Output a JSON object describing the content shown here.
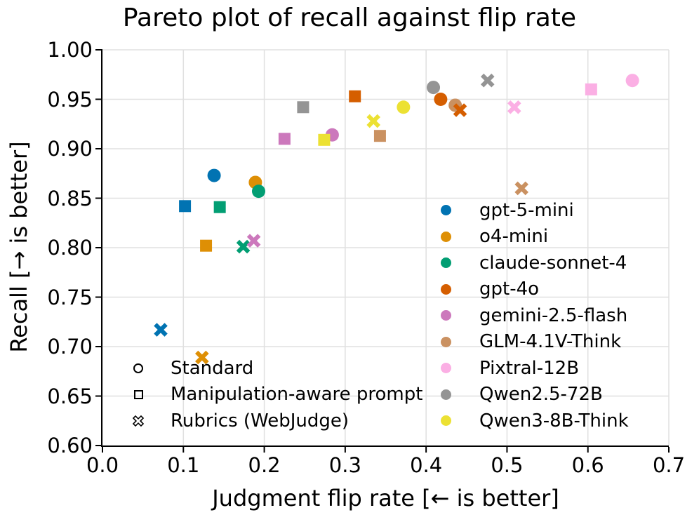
{
  "figure": {
    "background": "#ffffff"
  },
  "chart_data": {
    "type": "scatter",
    "title": "Pareto plot of recall against flip rate",
    "xlabel": "Judgment flip rate [← is better]",
    "ylabel": "Recall [→ is better]",
    "xlim": [
      0.0,
      0.7
    ],
    "ylim": [
      0.6,
      1.0
    ],
    "grid": true,
    "x_ticks": [
      0.0,
      0.1,
      0.2,
      0.3,
      0.4,
      0.5,
      0.6,
      0.7
    ],
    "x_tick_labels": [
      "0.0",
      "0.1",
      "0.2",
      "0.3",
      "0.4",
      "0.5",
      "0.6",
      "0.7"
    ],
    "y_ticks": [
      0.6,
      0.65,
      0.7,
      0.75,
      0.8,
      0.85,
      0.9,
      0.95,
      1.0
    ],
    "y_tick_labels": [
      "0.60",
      "0.65",
      "0.70",
      "0.75",
      "0.80",
      "0.85",
      "0.90",
      "0.95",
      "1.00"
    ],
    "style": {
      "background": "#ffffff",
      "grid_color": "#e0e0e0",
      "spine_color": "#000000",
      "text_color": "#000000"
    },
    "legend_styles_position": "lower-left-inside",
    "legend_models_position": "center-right-inside",
    "settings": [
      {
        "key": "standard",
        "label": "Standard",
        "marker": "circle"
      },
      {
        "key": "manipulation_aware",
        "label": "Manipulation-aware prompt",
        "marker": "square"
      },
      {
        "key": "rubrics",
        "label": "Rubrics (WebJudge)",
        "marker": "x"
      }
    ],
    "series": [
      {
        "name": "gpt-5-mini",
        "color": "#0173b2",
        "points": {
          "standard": [
            0.138,
            0.873
          ],
          "manipulation_aware": [
            0.102,
            0.842
          ],
          "rubrics": [
            0.072,
            0.717
          ]
        }
      },
      {
        "name": "o4-mini",
        "color": "#de8f05",
        "points": {
          "standard": [
            0.189,
            0.866
          ],
          "manipulation_aware": [
            0.128,
            0.802
          ],
          "rubrics": [
            0.123,
            0.689
          ]
        }
      },
      {
        "name": "claude-sonnet-4",
        "color": "#029e73",
        "points": {
          "standard": [
            0.193,
            0.857
          ],
          "manipulation_aware": [
            0.145,
            0.841
          ],
          "rubrics": [
            0.174,
            0.801
          ]
        }
      },
      {
        "name": "gpt-4o",
        "color": "#d55e00",
        "points": {
          "standard": [
            0.418,
            0.95
          ],
          "manipulation_aware": [
            0.312,
            0.953
          ],
          "rubrics": [
            0.442,
            0.939
          ]
        }
      },
      {
        "name": "gemini-2.5-flash",
        "color": "#cc78bc",
        "points": {
          "standard": [
            0.284,
            0.914
          ],
          "manipulation_aware": [
            0.225,
            0.91
          ],
          "rubrics": [
            0.187,
            0.807
          ]
        }
      },
      {
        "name": "GLM-4.1V-Think",
        "color": "#ca9161",
        "points": {
          "standard": [
            0.436,
            0.944
          ],
          "manipulation_aware": [
            0.343,
            0.913
          ],
          "rubrics": [
            0.518,
            0.86
          ]
        }
      },
      {
        "name": "Pixtral-12B",
        "color": "#fbafe4",
        "points": {
          "standard": [
            0.655,
            0.969
          ],
          "manipulation_aware": [
            0.604,
            0.96
          ],
          "rubrics": [
            0.509,
            0.942
          ]
        }
      },
      {
        "name": "Qwen2.5-72B",
        "color": "#949494",
        "points": {
          "standard": [
            0.409,
            0.962
          ],
          "manipulation_aware": [
            0.248,
            0.942
          ],
          "rubrics": [
            0.476,
            0.969
          ]
        }
      },
      {
        "name": "Qwen3-8B-Think",
        "color": "#ece133",
        "points": {
          "standard": [
            0.372,
            0.942
          ],
          "manipulation_aware": [
            0.274,
            0.909
          ],
          "rubrics": [
            0.335,
            0.928
          ]
        }
      }
    ]
  }
}
